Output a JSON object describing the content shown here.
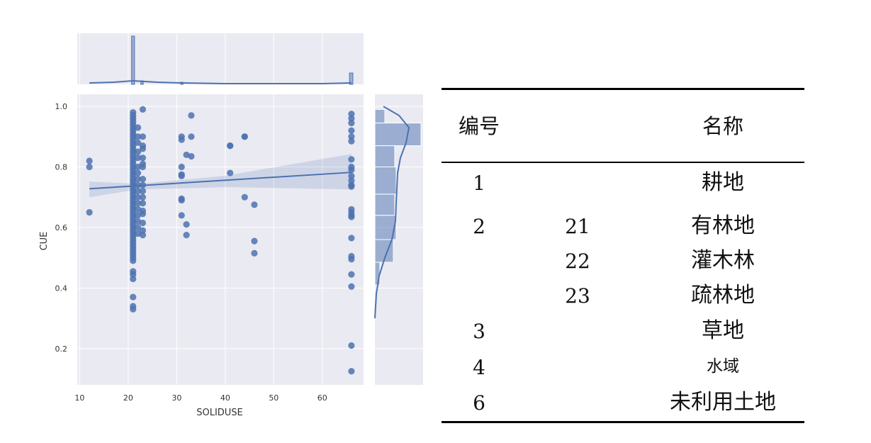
{
  "chart_data": {
    "type": "scatter",
    "title": "",
    "xlabel": "SOLIDUSE",
    "ylabel": "CUE",
    "xlim": [
      9.5,
      68.5
    ],
    "ylim": [
      0.08,
      1.04
    ],
    "xticks": [
      "10",
      "20",
      "30",
      "40",
      "50",
      "60"
    ],
    "yticks": [
      "0.2",
      "0.4",
      "0.6",
      "0.8",
      "1.0"
    ],
    "grid": true,
    "marginal_top": "histogram + kde of SOLIDUSE",
    "marginal_right": "histogram + kde of CUE",
    "regression": {
      "x": [
        12,
        66
      ],
      "y": [
        0.728,
        0.782
      ]
    },
    "points": [
      [
        12,
        0.82
      ],
      [
        12,
        0.8
      ],
      [
        12,
        0.65
      ],
      [
        21,
        0.98
      ],
      [
        21,
        0.97
      ],
      [
        21,
        0.96
      ],
      [
        21,
        0.95
      ],
      [
        21,
        0.94
      ],
      [
        21,
        0.93
      ],
      [
        21,
        0.92
      ],
      [
        21,
        0.91
      ],
      [
        21,
        0.9
      ],
      [
        21,
        0.89
      ],
      [
        21,
        0.88
      ],
      [
        21,
        0.87
      ],
      [
        21,
        0.86
      ],
      [
        21,
        0.85
      ],
      [
        21,
        0.84
      ],
      [
        21,
        0.83
      ],
      [
        21,
        0.82
      ],
      [
        21,
        0.81
      ],
      [
        21,
        0.8
      ],
      [
        21,
        0.79
      ],
      [
        21,
        0.78
      ],
      [
        21,
        0.77
      ],
      [
        21,
        0.76
      ],
      [
        21,
        0.75
      ],
      [
        21,
        0.74
      ],
      [
        21,
        0.73
      ],
      [
        21,
        0.72
      ],
      [
        21,
        0.71
      ],
      [
        21,
        0.7
      ],
      [
        21,
        0.69
      ],
      [
        21,
        0.68
      ],
      [
        21,
        0.67
      ],
      [
        21,
        0.66
      ],
      [
        21,
        0.65
      ],
      [
        21,
        0.64
      ],
      [
        21,
        0.63
      ],
      [
        21,
        0.62
      ],
      [
        21,
        0.61
      ],
      [
        21,
        0.6
      ],
      [
        21,
        0.59
      ],
      [
        21,
        0.58
      ],
      [
        21,
        0.57
      ],
      [
        21,
        0.56
      ],
      [
        21,
        0.55
      ],
      [
        21,
        0.54
      ],
      [
        21,
        0.53
      ],
      [
        21,
        0.52
      ],
      [
        21,
        0.51
      ],
      [
        21,
        0.5
      ],
      [
        21,
        0.49
      ],
      [
        21,
        0.455
      ],
      [
        21,
        0.445
      ],
      [
        21,
        0.43
      ],
      [
        21,
        0.37
      ],
      [
        21,
        0.34
      ],
      [
        21,
        0.33
      ],
      [
        22,
        0.93
      ],
      [
        22,
        0.9
      ],
      [
        22,
        0.88
      ],
      [
        22,
        0.85
      ],
      [
        22,
        0.83
      ],
      [
        22,
        0.8
      ],
      [
        22,
        0.78
      ],
      [
        22,
        0.76
      ],
      [
        22,
        0.74
      ],
      [
        22,
        0.72
      ],
      [
        22,
        0.7
      ],
      [
        22,
        0.68
      ],
      [
        22,
        0.66
      ],
      [
        22,
        0.64
      ],
      [
        22,
        0.62
      ],
      [
        22,
        0.6
      ],
      [
        22,
        0.58
      ],
      [
        23,
        0.99
      ],
      [
        23,
        0.9
      ],
      [
        23,
        0.87
      ],
      [
        23,
        0.86
      ],
      [
        23,
        0.83
      ],
      [
        23,
        0.81
      ],
      [
        23,
        0.8
      ],
      [
        23,
        0.76
      ],
      [
        23,
        0.74
      ],
      [
        23,
        0.72
      ],
      [
        23,
        0.7
      ],
      [
        23,
        0.68
      ],
      [
        23,
        0.655
      ],
      [
        23,
        0.645
      ],
      [
        23,
        0.615
      ],
      [
        23,
        0.59
      ],
      [
        23,
        0.575
      ],
      [
        31,
        0.9
      ],
      [
        31,
        0.89
      ],
      [
        31,
        0.8
      ],
      [
        31,
        0.775
      ],
      [
        31,
        0.77
      ],
      [
        31,
        0.695
      ],
      [
        31,
        0.69
      ],
      [
        31,
        0.64
      ],
      [
        32,
        0.84
      ],
      [
        32,
        0.61
      ],
      [
        32,
        0.575
      ],
      [
        33,
        0.97
      ],
      [
        33,
        0.9
      ],
      [
        33,
        0.835
      ],
      [
        41,
        0.87
      ],
      [
        41,
        0.87
      ],
      [
        41,
        0.78
      ],
      [
        44,
        0.9
      ],
      [
        44,
        0.9
      ],
      [
        44,
        0.7
      ],
      [
        46,
        0.675
      ],
      [
        46,
        0.555
      ],
      [
        46,
        0.515
      ],
      [
        66,
        0.975
      ],
      [
        66,
        0.96
      ],
      [
        66,
        0.945
      ],
      [
        66,
        0.92
      ],
      [
        66,
        0.9
      ],
      [
        66,
        0.885
      ],
      [
        66,
        0.825
      ],
      [
        66,
        0.8
      ],
      [
        66,
        0.79
      ],
      [
        66,
        0.77
      ],
      [
        66,
        0.755
      ],
      [
        66,
        0.74
      ],
      [
        66,
        0.735
      ],
      [
        66,
        0.66
      ],
      [
        66,
        0.65
      ],
      [
        66,
        0.64
      ],
      [
        66,
        0.635
      ],
      [
        66,
        0.565
      ],
      [
        66,
        0.505
      ],
      [
        66,
        0.495
      ],
      [
        66,
        0.445
      ],
      [
        66,
        0.405
      ],
      [
        66,
        0.21
      ],
      [
        66,
        0.125
      ]
    ]
  },
  "table": {
    "headers": {
      "code": "编号",
      "name": "名称"
    },
    "rows": [
      {
        "code": "1",
        "sub": "",
        "name": "耕地"
      },
      {
        "code": "2",
        "sub": "21",
        "name": "有林地"
      },
      {
        "code": "",
        "sub": "22",
        "name": "灌木林"
      },
      {
        "code": "",
        "sub": "23",
        "name": "疏林地"
      },
      {
        "code": "3",
        "sub": "",
        "name": "草地"
      },
      {
        "code": "4",
        "sub": "",
        "name": "水域"
      },
      {
        "code": "6",
        "sub": "",
        "name": "未利用土地"
      }
    ]
  },
  "colors": {
    "panel_bg": "#eaeaf2",
    "grid": "#ffffff",
    "points": "#4c72b0",
    "line": "#4c72b0"
  }
}
